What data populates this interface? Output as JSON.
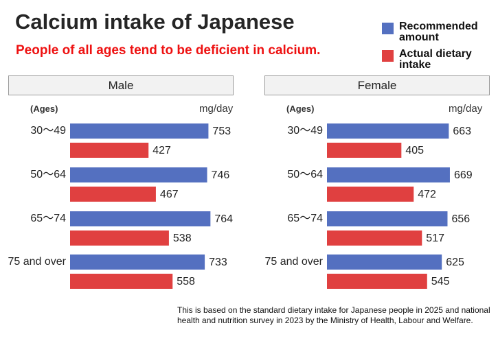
{
  "title": "Calcium intake of Japanese",
  "subtitle": "People of all ages tend to be deficient in calcium.",
  "legend": [
    {
      "label": "Recommended amount",
      "color": "#5470c0"
    },
    {
      "label": "Actual dietary intake",
      "color": "#e04040"
    }
  ],
  "ages_label": "(Ages)",
  "unit_label": "mg/day",
  "footnote": "This is based on the standard dietary intake for Japanese people in 2025 and  national health and nutrition survey in 2023 by the Ministry of Health, Labour and Welfare.",
  "chart_data": [
    {
      "type": "bar",
      "orientation": "horizontal",
      "title": "Male",
      "categories": [
        "30～49",
        "50～64",
        "65～74",
        "75 and over"
      ],
      "series": [
        {
          "name": "Recommended amount",
          "values": [
            753,
            746,
            764,
            733
          ]
        },
        {
          "name": "Actual dietary intake",
          "values": [
            427,
            467,
            538,
            558
          ]
        }
      ],
      "ylabel": "(Ages)",
      "xlabel": "mg/day"
    },
    {
      "type": "bar",
      "orientation": "horizontal",
      "title": "Female",
      "categories": [
        "30～49",
        "50～64",
        "65～74",
        "75 and over"
      ],
      "series": [
        {
          "name": "Recommended amount",
          "values": [
            663,
            669,
            656,
            625
          ]
        },
        {
          "name": "Actual dietary intake",
          "values": [
            405,
            472,
            517,
            545
          ]
        }
      ],
      "ylabel": "(Ages)",
      "xlabel": "mg/day"
    }
  ]
}
